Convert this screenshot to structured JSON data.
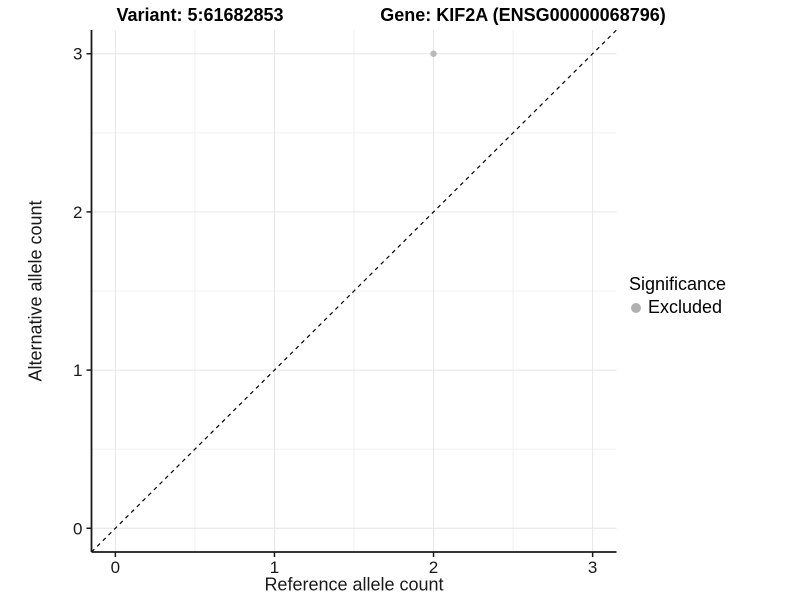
{
  "chart_data": {
    "type": "scatter",
    "title_left": "Variant: 5:61682853",
    "title_right": "Gene: KIF2A (ENSG00000068796)",
    "xlabel": "Reference allele count",
    "ylabel": "Alternative allele count",
    "xlim": [
      -0.15,
      3.15
    ],
    "ylim": [
      -0.15,
      3.15
    ],
    "xticks": [
      0,
      1,
      2,
      3
    ],
    "yticks": [
      0,
      1,
      2,
      3
    ],
    "minor_gridlines": [
      0.5,
      1.5,
      2.5
    ],
    "grid": "major and minor gridlines, light gray on white background",
    "points": [
      {
        "x": 2,
        "y": 3,
        "series": "Excluded"
      }
    ],
    "reference_line": {
      "kind": "identity y=x",
      "style": "dashed",
      "color": "#000000"
    },
    "legend": {
      "title": "Significance",
      "position": "right",
      "entries": [
        {
          "label": "Excluded",
          "color": "#b0b0b0"
        }
      ]
    },
    "colors": {
      "point": "#b9b9b9",
      "grid_major": "#e6e6e6",
      "grid_minor": "#f1f1f1",
      "axis_line": "#1a1a1a",
      "tick_text": "#1a1a1a",
      "background": "#ffffff"
    }
  }
}
